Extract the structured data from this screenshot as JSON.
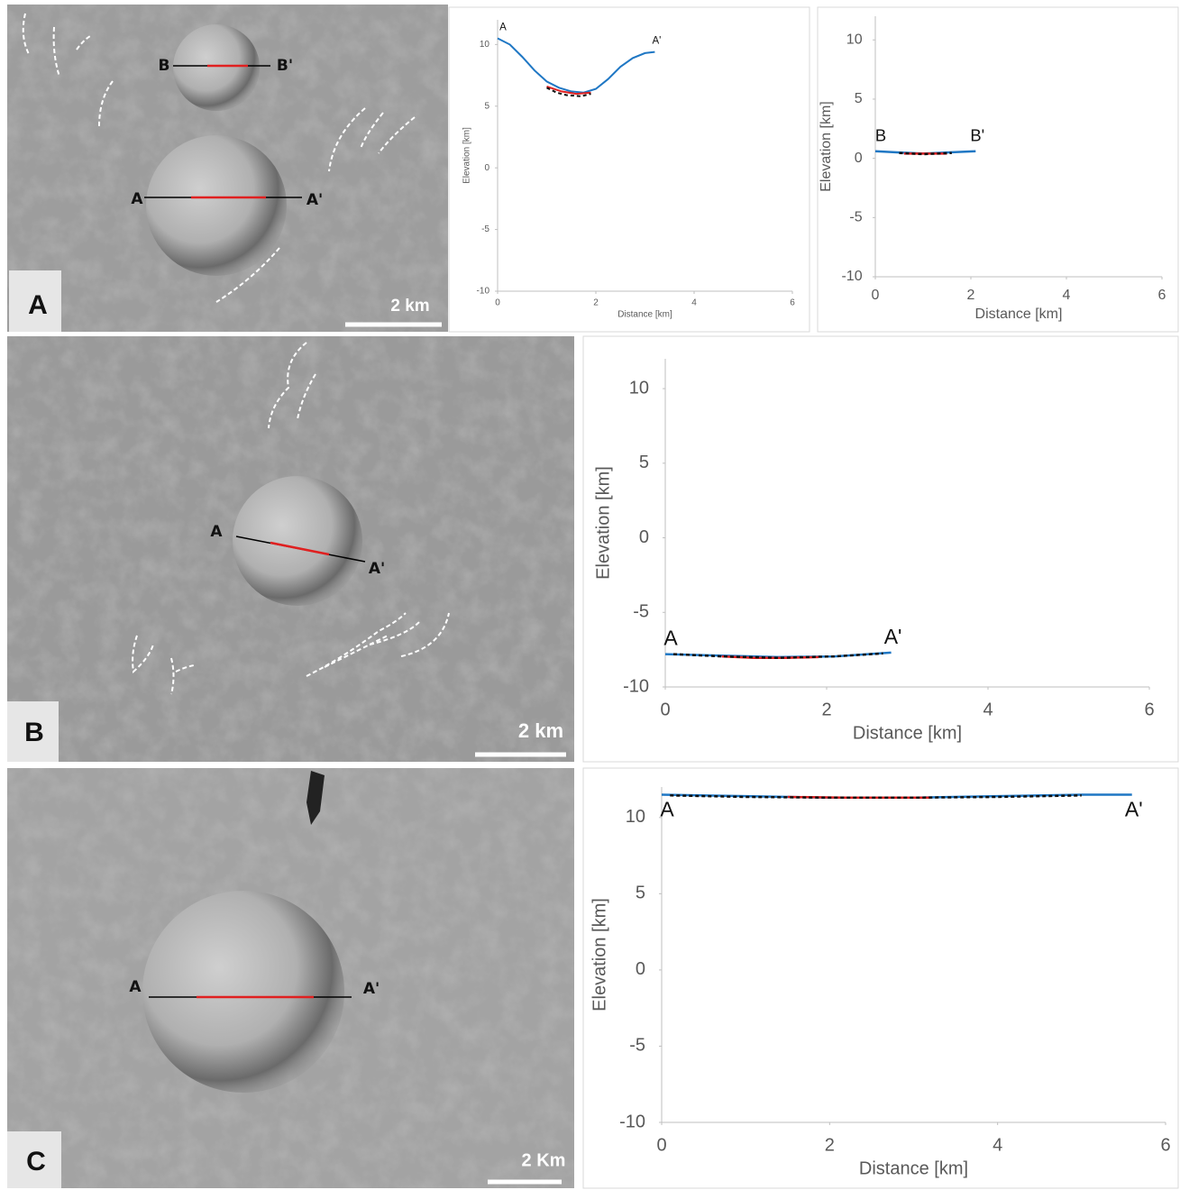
{
  "images": [
    {
      "panel": "A",
      "scale": "2 km",
      "sections": [
        {
          "start": "B",
          "end": "B'"
        },
        {
          "start": "A",
          "end": "A'"
        }
      ]
    },
    {
      "panel": "B",
      "scale": "2 km",
      "sections": [
        {
          "start": "A",
          "end": "A'"
        }
      ]
    },
    {
      "panel": "C",
      "scale": "2 Km",
      "sections": [
        {
          "start": "A",
          "end": "A'"
        }
      ]
    }
  ],
  "chart_data": [
    {
      "type": "line",
      "x_label": "Distance [km]",
      "y_label": "Elevation [km]",
      "annotations": [
        "A",
        "A'"
      ],
      "xlim": [
        0,
        6
      ],
      "ylim": [
        -10,
        12
      ],
      "xticks": [
        0,
        2,
        4,
        6
      ],
      "yticks": [
        -10,
        -5,
        0,
        5,
        10
      ],
      "series": [
        {
          "color": "#1f77c4",
          "x": [
            0,
            0.25,
            0.5,
            0.75,
            1.0,
            1.25,
            1.5,
            1.75,
            2.0,
            2.25,
            2.5,
            2.75,
            3.0,
            3.2
          ],
          "values": [
            10.5,
            10.0,
            9.0,
            7.9,
            7.0,
            6.5,
            6.2,
            6.1,
            6.4,
            7.2,
            8.2,
            8.9,
            9.3,
            9.4
          ]
        },
        {
          "color": "#e02020",
          "x": [
            1.0,
            1.3,
            1.6,
            1.9
          ],
          "values": [
            6.6,
            6.2,
            6.0,
            6.1
          ]
        },
        {
          "color": "#111111",
          "dashed": true,
          "x": [
            1.0,
            1.2,
            1.4,
            1.7,
            1.9
          ],
          "values": [
            6.5,
            6.1,
            5.9,
            5.8,
            6.0
          ]
        }
      ]
    },
    {
      "type": "line",
      "x_label": "Distance [km]",
      "y_label": "Elevation [km]",
      "annotations": [
        "B",
        "B'"
      ],
      "xlim": [
        0,
        6
      ],
      "ylim": [
        -10,
        12
      ],
      "xticks": [
        0,
        2,
        4,
        6
      ],
      "yticks": [
        -10,
        -5,
        0,
        5,
        10
      ],
      "series": [
        {
          "color": "#1f77c4",
          "x": [
            0,
            0.5,
            1.0,
            1.5,
            2.1
          ],
          "values": [
            0.6,
            0.5,
            0.4,
            0.5,
            0.6
          ]
        },
        {
          "color": "#e02020",
          "x": [
            0.6,
            1.0,
            1.5
          ],
          "values": [
            0.4,
            0.4,
            0.4
          ]
        },
        {
          "color": "#111111",
          "dashed": true,
          "x": [
            0.5,
            1.0,
            1.6
          ],
          "values": [
            0.45,
            0.35,
            0.45
          ]
        }
      ]
    },
    {
      "type": "line",
      "x_label": "Distance [km]",
      "y_label": "Elevation [km]",
      "annotations": [
        "A",
        "A'"
      ],
      "xlim": [
        0,
        6
      ],
      "ylim": [
        -10,
        12
      ],
      "xticks": [
        0,
        2,
        4,
        6
      ],
      "yticks": [
        -10,
        -5,
        0,
        5,
        10
      ],
      "series": [
        {
          "color": "#1f77c4",
          "x": [
            0,
            0.7,
            1.4,
            2.1,
            2.8
          ],
          "values": [
            -7.8,
            -7.9,
            -8.0,
            -7.95,
            -7.7
          ]
        },
        {
          "color": "#e02020",
          "x": [
            0.7,
            1.1,
            1.5,
            1.9
          ],
          "values": [
            -7.95,
            -8.05,
            -8.05,
            -8.0
          ]
        },
        {
          "color": "#111111",
          "dashed": true,
          "x": [
            0.1,
            0.7,
            1.4,
            2.1,
            2.7
          ],
          "values": [
            -7.8,
            -7.95,
            -8.05,
            -7.95,
            -7.75
          ]
        }
      ]
    },
    {
      "type": "line",
      "x_label": "Distance [km]",
      "y_label": "Elevation [km]",
      "annotations": [
        "A",
        "A'"
      ],
      "xlim": [
        0,
        6
      ],
      "ylim": [
        -10,
        12
      ],
      "xticks": [
        0,
        2,
        4,
        6
      ],
      "yticks": [
        -10,
        -5,
        0,
        5,
        10
      ],
      "series": [
        {
          "color": "#1f77c4",
          "x": [
            0,
            1.0,
            2.0,
            3.0,
            4.0,
            5.0,
            5.6
          ],
          "values": [
            11.5,
            11.4,
            11.3,
            11.3,
            11.4,
            11.5,
            11.5
          ]
        },
        {
          "color": "#e02020",
          "x": [
            1.5,
            2.2,
            2.9,
            3.2
          ],
          "values": [
            11.35,
            11.3,
            11.3,
            11.3
          ]
        },
        {
          "color": "#111111",
          "dashed": true,
          "x": [
            0.1,
            1.0,
            2.0,
            3.0,
            4.0,
            5.0
          ],
          "values": [
            11.45,
            11.35,
            11.3,
            11.3,
            11.35,
            11.45
          ]
        }
      ]
    }
  ]
}
